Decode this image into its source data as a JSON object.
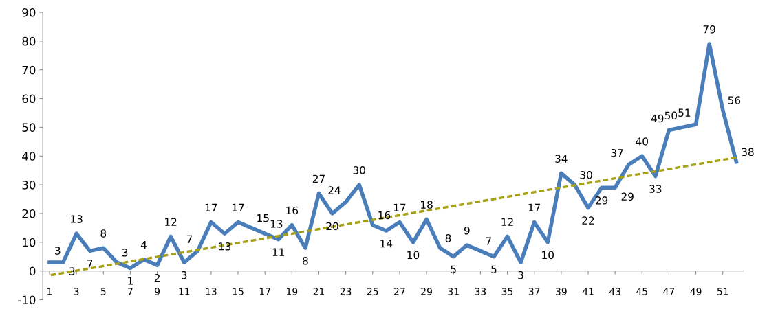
{
  "chart_data": {
    "type": "line",
    "x": [
      1,
      2,
      3,
      4,
      5,
      6,
      7,
      8,
      9,
      10,
      11,
      12,
      13,
      14,
      15,
      16,
      17,
      18,
      19,
      20,
      21,
      22,
      23,
      24,
      25,
      26,
      27,
      28,
      29,
      30,
      31,
      32,
      33,
      34,
      35,
      36,
      37,
      38,
      39,
      40,
      41,
      42,
      43,
      44,
      45,
      46,
      47,
      48,
      49,
      50,
      51,
      52
    ],
    "xlim": [
      0.5,
      52.5
    ],
    "xticks": [
      1,
      3,
      5,
      7,
      9,
      11,
      13,
      15,
      17,
      19,
      21,
      23,
      25,
      27,
      29,
      31,
      33,
      35,
      37,
      39,
      41,
      43,
      45,
      47,
      49,
      51
    ],
    "ylim": [
      -10,
      90
    ],
    "yticks": [
      -10,
      0,
      10,
      20,
      30,
      40,
      50,
      60,
      70,
      80,
      90
    ],
    "grid": false,
    "legend": false,
    "data_labels": true,
    "series": [
      {
        "color": "#4a7ebb",
        "line_style": "solid",
        "data_labels": true,
        "values": [
          3,
          3,
          13,
          7,
          8,
          3,
          1,
          4,
          2,
          12,
          3,
          7,
          17,
          13,
          17,
          15,
          13,
          11,
          16,
          8,
          27,
          20,
          24,
          30,
          16,
          14,
          17,
          10,
          18,
          8,
          5,
          9,
          7,
          5,
          12,
          3,
          17,
          10,
          34,
          30,
          22,
          29,
          29,
          37,
          40,
          33,
          49,
          50,
          51,
          79,
          56,
          38
        ]
      },
      {
        "color": "#a5a014",
        "line_style": "dashed",
        "data_labels": false,
        "x": [
          1,
          52
        ],
        "values": [
          -1.5,
          39.5
        ]
      }
    ]
  }
}
